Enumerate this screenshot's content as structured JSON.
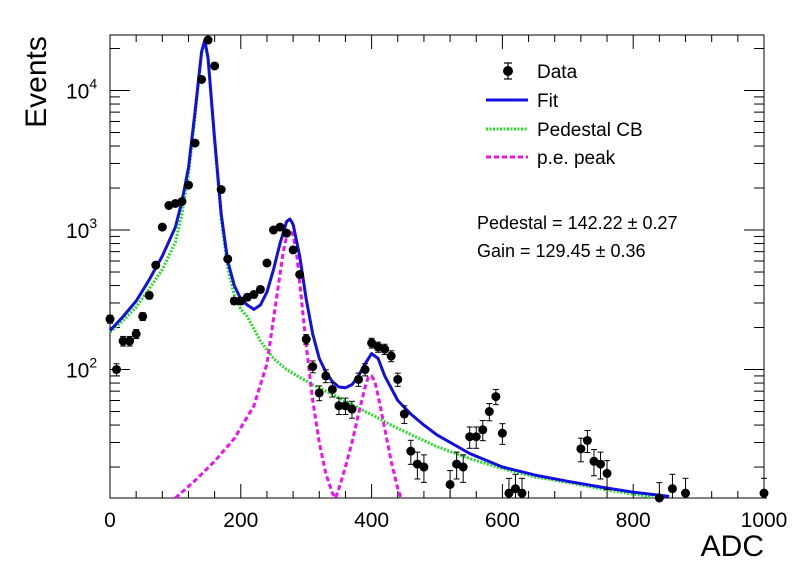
{
  "chart_data": {
    "type": "scatter",
    "xlabel": "ADC",
    "ylabel": "Events",
    "xlim": [
      0,
      1000
    ],
    "ylim": [
      12,
      25000
    ],
    "y_scale": "log",
    "x_ticks": [
      "0",
      "200",
      "400",
      "600",
      "800",
      "1000"
    ],
    "y_ticks": [
      {
        "value": 100,
        "base": "10",
        "exp": "2"
      },
      {
        "value": 1000,
        "base": "10",
        "exp": "3"
      },
      {
        "value": 10000,
        "base": "10",
        "exp": "4"
      }
    ],
    "legend_position": "top-right",
    "legend": [
      {
        "label": "Data",
        "style": "marker",
        "color": "#000000"
      },
      {
        "label": "Fit",
        "style": "solid",
        "color": "#1010e0"
      },
      {
        "label": "Pedestal CB",
        "style": "dotted",
        "color": "#22dd22"
      },
      {
        "label": "p.e. peak",
        "style": "dashed",
        "color": "#ee11ee"
      }
    ],
    "annotations": [
      "Pedestal = 142.22 ± 0.27",
      "Gain = 129.45 ± 0.36"
    ],
    "series": [
      {
        "name": "Data",
        "x": [
          0,
          10,
          20,
          30,
          40,
          50,
          60,
          70,
          80,
          90,
          100,
          110,
          120,
          130,
          140,
          150,
          160,
          170,
          180,
          190,
          200,
          210,
          220,
          230,
          240,
          250,
          260,
          270,
          280,
          290,
          300,
          310,
          320,
          330,
          340,
          350,
          360,
          370,
          380,
          390,
          400,
          410,
          420,
          430,
          440,
          450,
          460,
          470,
          480,
          490,
          500,
          510,
          520,
          530,
          540,
          550,
          560,
          570,
          580,
          590,
          600,
          610,
          620,
          630,
          640,
          650,
          660,
          670,
          680,
          690,
          700,
          710,
          720,
          730,
          740,
          750,
          760,
          770,
          780,
          790,
          800,
          810,
          820,
          830,
          840,
          850,
          860,
          870,
          880,
          890,
          900,
          910,
          920,
          930,
          940,
          950,
          960,
          970,
          980,
          990,
          1000
        ],
        "y": [
          230,
          100,
          160,
          160,
          180,
          240,
          340,
          560,
          1050,
          1500,
          1550,
          1600,
          2100,
          4200,
          12000,
          23000,
          15000,
          1950,
          620,
          310,
          310,
          330,
          345,
          375,
          580,
          1000,
          1050,
          950,
          720,
          480,
          165,
          105,
          68,
          90,
          72,
          55,
          55,
          52,
          85,
          100,
          155,
          145,
          140,
          125,
          85,
          48,
          26,
          21,
          20,
          0,
          0,
          0,
          15,
          21,
          20,
          33,
          33,
          37,
          50,
          64,
          35,
          13,
          14,
          13,
          0,
          0,
          0,
          0,
          0,
          0,
          0,
          0,
          27,
          31,
          22,
          21,
          18,
          0,
          0,
          0,
          0,
          0,
          0,
          0,
          12,
          0,
          14,
          0,
          13,
          0,
          0,
          0,
          0,
          0,
          0,
          0,
          0,
          0,
          0,
          0,
          13
        ]
      },
      {
        "name": "Fit",
        "x": [
          0,
          20,
          40,
          60,
          80,
          100,
          110,
          120,
          130,
          140,
          145,
          150,
          160,
          170,
          180,
          190,
          200,
          210,
          220,
          230,
          240,
          250,
          260,
          270,
          275,
          280,
          290,
          300,
          310,
          320,
          330,
          340,
          350,
          360,
          370,
          380,
          390,
          400,
          410,
          420,
          440,
          460,
          480,
          500,
          550,
          600,
          650,
          700,
          750,
          800,
          850,
          855
        ],
        "y": [
          190,
          240,
          310,
          440,
          650,
          1050,
          1600,
          2800,
          7000,
          19000,
          23000,
          17000,
          4500,
          1300,
          600,
          400,
          320,
          290,
          270,
          290,
          360,
          520,
          800,
          1150,
          1200,
          1100,
          650,
          320,
          180,
          120,
          96,
          82,
          75,
          74,
          78,
          90,
          110,
          130,
          120,
          90,
          60,
          48,
          40,
          34,
          25,
          20,
          17.5,
          15.8,
          14.4,
          13.2,
          12.4,
          12.3
        ]
      },
      {
        "name": "Pedestal CB",
        "x": [
          0,
          20,
          40,
          60,
          80,
          100,
          110,
          120,
          130,
          140,
          145,
          150,
          160,
          170,
          180,
          190,
          200,
          210,
          230,
          250,
          270,
          290,
          310,
          330,
          350,
          370,
          390,
          410,
          430,
          450,
          500,
          550,
          600,
          650,
          700,
          750,
          800,
          830
        ],
        "y": [
          185,
          225,
          280,
          380,
          520,
          820,
          1300,
          2500,
          6500,
          18500,
          22500,
          16500,
          4300,
          1200,
          540,
          340,
          270,
          240,
          160,
          120,
          100,
          88,
          78,
          70,
          63,
          56,
          50,
          45,
          40,
          36,
          28,
          23,
          19.5,
          17,
          15.5,
          14,
          12.8,
          12.2
        ]
      },
      {
        "name": "p.e. peak",
        "x": [
          100,
          130,
          160,
          190,
          220,
          240,
          250,
          260,
          265,
          270,
          275,
          280,
          285,
          290,
          300,
          310,
          320,
          330,
          340,
          345,
          350,
          360,
          370,
          380,
          390,
          395,
          400,
          405,
          410,
          420,
          430,
          440,
          445
        ],
        "y": [
          12,
          16,
          22,
          32,
          55,
          110,
          230,
          480,
          700,
          900,
          1000,
          920,
          700,
          420,
          150,
          60,
          30,
          18,
          13,
          12,
          14,
          20,
          30,
          48,
          75,
          88,
          90,
          82,
          65,
          38,
          22,
          14,
          12
        ]
      }
    ]
  }
}
